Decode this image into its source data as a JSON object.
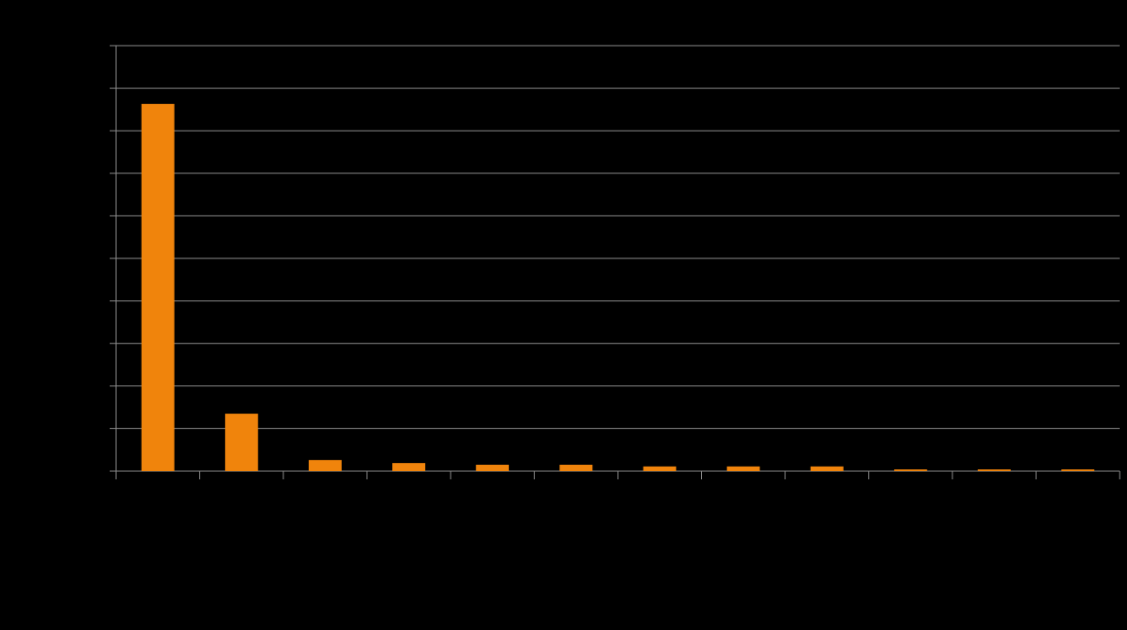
{
  "chart_data": {
    "type": "bar",
    "categories": [
      null,
      null,
      null,
      null,
      null,
      null,
      null,
      null,
      null,
      null,
      null,
      null
    ],
    "values": [
      86.3,
      13.5,
      2.6,
      1.9,
      1.5,
      1.5,
      1.1,
      1.1,
      1.1,
      0.4,
      0.4,
      0.4
    ],
    "color": "#f0840c",
    "ylim": [
      0,
      100
    ],
    "yticks": [
      0,
      10,
      20,
      30,
      40,
      50,
      60,
      70,
      80,
      90,
      100
    ],
    "grid": true
  }
}
